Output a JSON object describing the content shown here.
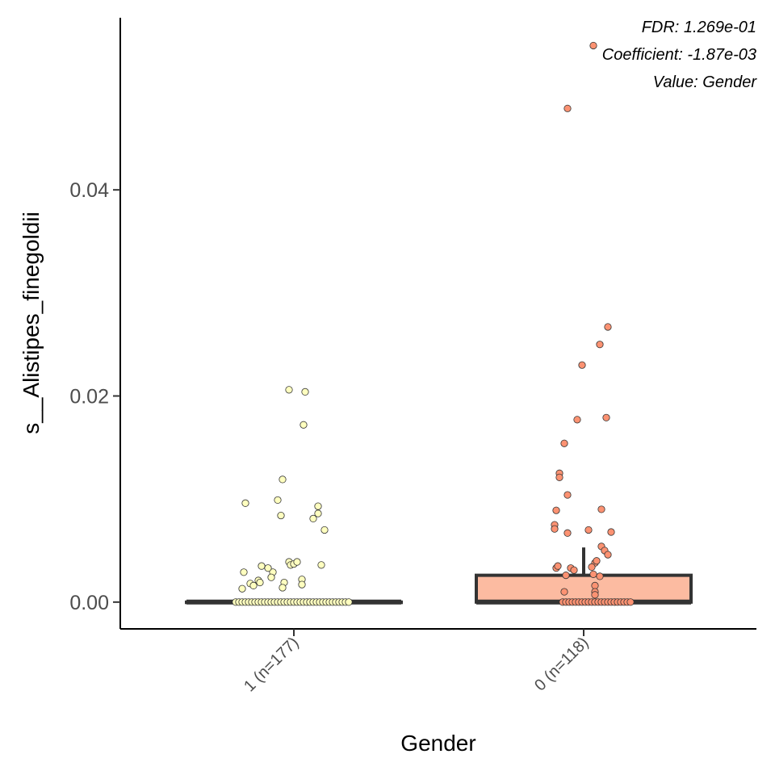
{
  "chart_data": {
    "type": "box",
    "xlabel": "Gender",
    "ylabel": "s__Alistipes_finegoldii",
    "ylim": [
      -0.0026,
      0.0567
    ],
    "y_ticks": [
      0.0,
      0.02,
      0.04
    ],
    "y_tick_labels": [
      "0.00",
      "0.02",
      "0.04"
    ],
    "categories": [
      "1 (n=177)",
      "0 (n=118)"
    ],
    "annotations": [
      "FDR: 1.269e-01",
      "Coefficient: -1.87e-03",
      "Value: Gender"
    ],
    "grid": false,
    "legend": "none",
    "boxes": [
      {
        "category": "1 (n=177)",
        "fill": "#ffffbf",
        "point_fill": "#ffffbf",
        "q1": 0.0,
        "median": 0.0,
        "q3": 0.0,
        "whisker_low": 0.0,
        "whisker_high": 0.0,
        "points": [
          {
            "x": -0.36,
            "y": 0.0
          },
          {
            "x": -0.34,
            "y": 0.0
          },
          {
            "x": -0.32,
            "y": 0.0
          },
          {
            "x": -0.3,
            "y": 0.0
          },
          {
            "x": -0.28,
            "y": 0.0
          },
          {
            "x": -0.26,
            "y": 0.0
          },
          {
            "x": -0.24,
            "y": 0.0
          },
          {
            "x": -0.22,
            "y": 0.0
          },
          {
            "x": -0.2,
            "y": 0.0
          },
          {
            "x": -0.18,
            "y": 0.0
          },
          {
            "x": -0.16,
            "y": 0.0
          },
          {
            "x": -0.14,
            "y": 0.0
          },
          {
            "x": -0.12,
            "y": 0.0
          },
          {
            "x": -0.1,
            "y": 0.0
          },
          {
            "x": -0.08,
            "y": 0.0
          },
          {
            "x": -0.06,
            "y": 0.0
          },
          {
            "x": -0.04,
            "y": 0.0
          },
          {
            "x": -0.02,
            "y": 0.0
          },
          {
            "x": 0.0,
            "y": 0.0
          },
          {
            "x": 0.02,
            "y": 0.0
          },
          {
            "x": 0.04,
            "y": 0.0
          },
          {
            "x": 0.06,
            "y": 0.0
          },
          {
            "x": 0.08,
            "y": 0.0
          },
          {
            "x": 0.1,
            "y": 0.0
          },
          {
            "x": 0.12,
            "y": 0.0
          },
          {
            "x": 0.14,
            "y": 0.0
          },
          {
            "x": 0.16,
            "y": 0.0
          },
          {
            "x": 0.18,
            "y": 0.0
          },
          {
            "x": 0.2,
            "y": 0.0
          },
          {
            "x": 0.22,
            "y": 0.0
          },
          {
            "x": 0.24,
            "y": 0.0
          },
          {
            "x": 0.26,
            "y": 0.0
          },
          {
            "x": 0.28,
            "y": 0.0
          },
          {
            "x": 0.3,
            "y": 0.0
          },
          {
            "x": 0.32,
            "y": 0.0
          },
          {
            "x": 0.34,
            "y": 0.0
          },
          {
            "x": -0.3,
            "y": 0.0096
          },
          {
            "x": -0.1,
            "y": 0.0099
          },
          {
            "x": -0.07,
            "y": 0.0119
          },
          {
            "x": -0.08,
            "y": 0.0084
          },
          {
            "x": -0.03,
            "y": 0.0206
          },
          {
            "x": 0.07,
            "y": 0.0204
          },
          {
            "x": 0.06,
            "y": 0.0172
          },
          {
            "x": 0.15,
            "y": 0.0093
          },
          {
            "x": 0.15,
            "y": 0.0086
          },
          {
            "x": 0.12,
            "y": 0.0081
          },
          {
            "x": 0.19,
            "y": 0.007
          },
          {
            "x": 0.17,
            "y": 0.0036
          },
          {
            "x": -0.31,
            "y": 0.0029
          },
          {
            "x": -0.27,
            "y": 0.0018
          },
          {
            "x": -0.25,
            "y": 0.0016
          },
          {
            "x": -0.22,
            "y": 0.0021
          },
          {
            "x": -0.21,
            "y": 0.0019
          },
          {
            "x": -0.13,
            "y": 0.0029
          },
          {
            "x": -0.14,
            "y": 0.0024
          },
          {
            "x": -0.2,
            "y": 0.0035
          },
          {
            "x": -0.16,
            "y": 0.0033
          },
          {
            "x": -0.06,
            "y": 0.0019
          },
          {
            "x": -0.07,
            "y": 0.0014
          },
          {
            "x": -0.03,
            "y": 0.0039
          },
          {
            "x": -0.02,
            "y": 0.0036
          },
          {
            "x": 0.0,
            "y": 0.0037
          },
          {
            "x": 0.02,
            "y": 0.0039
          },
          {
            "x": -0.32,
            "y": 0.0013
          },
          {
            "x": 0.05,
            "y": 0.0022
          },
          {
            "x": 0.05,
            "y": 0.0017
          }
        ]
      },
      {
        "category": "0 (n=118)",
        "fill": "#fcbba1",
        "point_fill": "#fc9272",
        "q1": 0.0,
        "median": 0.0,
        "q3": 0.0026,
        "whisker_low": 0.0,
        "whisker_high": 0.0053,
        "points": [
          {
            "x": -0.13,
            "y": 0.0
          },
          {
            "x": -0.11,
            "y": 0.0
          },
          {
            "x": -0.09,
            "y": 0.0
          },
          {
            "x": -0.07,
            "y": 0.0
          },
          {
            "x": -0.05,
            "y": 0.0
          },
          {
            "x": -0.03,
            "y": 0.0
          },
          {
            "x": -0.01,
            "y": 0.0
          },
          {
            "x": 0.01,
            "y": 0.0
          },
          {
            "x": 0.03,
            "y": 0.0
          },
          {
            "x": 0.05,
            "y": 0.0
          },
          {
            "x": 0.07,
            "y": 0.0
          },
          {
            "x": 0.09,
            "y": 0.0
          },
          {
            "x": 0.11,
            "y": 0.0
          },
          {
            "x": 0.13,
            "y": 0.0
          },
          {
            "x": 0.15,
            "y": 0.0
          },
          {
            "x": 0.17,
            "y": 0.0
          },
          {
            "x": 0.19,
            "y": 0.0
          },
          {
            "x": 0.21,
            "y": 0.0
          },
          {
            "x": 0.23,
            "y": 0.0
          },
          {
            "x": 0.25,
            "y": 0.0
          },
          {
            "x": 0.27,
            "y": 0.0
          },
          {
            "x": 0.29,
            "y": 0.0
          },
          {
            "x": 0.06,
            "y": 0.054
          },
          {
            "x": -0.1,
            "y": 0.0479
          },
          {
            "x": 0.15,
            "y": 0.0267
          },
          {
            "x": 0.1,
            "y": 0.025
          },
          {
            "x": -0.01,
            "y": 0.023
          },
          {
            "x": 0.14,
            "y": 0.0179
          },
          {
            "x": -0.04,
            "y": 0.0177
          },
          {
            "x": -0.12,
            "y": 0.0154
          },
          {
            "x": -0.15,
            "y": 0.0125
          },
          {
            "x": -0.15,
            "y": 0.0121
          },
          {
            "x": -0.1,
            "y": 0.0104
          },
          {
            "x": 0.11,
            "y": 0.009
          },
          {
            "x": -0.17,
            "y": 0.0089
          },
          {
            "x": -0.18,
            "y": 0.0075
          },
          {
            "x": -0.18,
            "y": 0.0071
          },
          {
            "x": 0.03,
            "y": 0.007
          },
          {
            "x": 0.17,
            "y": 0.0068
          },
          {
            "x": -0.1,
            "y": 0.0067
          },
          {
            "x": 0.11,
            "y": 0.0054
          },
          {
            "x": 0.13,
            "y": 0.005
          },
          {
            "x": 0.15,
            "y": 0.0046
          },
          {
            "x": 0.07,
            "y": 0.0038
          },
          {
            "x": 0.08,
            "y": 0.004
          },
          {
            "x": 0.05,
            "y": 0.0034
          },
          {
            "x": -0.17,
            "y": 0.0033
          },
          {
            "x": -0.16,
            "y": 0.0035
          },
          {
            "x": -0.08,
            "y": 0.0033
          },
          {
            "x": -0.06,
            "y": 0.0031
          },
          {
            "x": -0.11,
            "y": 0.0026
          },
          {
            "x": 0.06,
            "y": 0.0027
          },
          {
            "x": 0.1,
            "y": 0.0025
          },
          {
            "x": 0.07,
            "y": 0.0016
          },
          {
            "x": -0.12,
            "y": 0.001
          },
          {
            "x": 0.07,
            "y": 0.001
          },
          {
            "x": 0.07,
            "y": 0.0007
          }
        ]
      }
    ]
  }
}
